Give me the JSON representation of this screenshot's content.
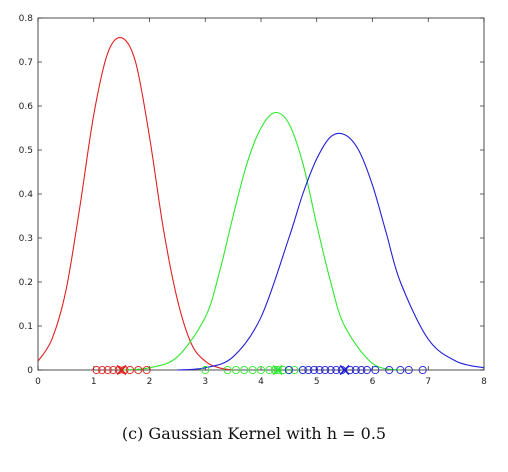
{
  "caption": "(c) Gaussian Kernel with h = 0.5",
  "chart_data": {
    "type": "line",
    "title": "",
    "xlabel": "",
    "ylabel": "",
    "xlim": [
      0,
      8
    ],
    "ylim": [
      0,
      0.8
    ],
    "xticks": [
      "0",
      "1",
      "2",
      "3",
      "4",
      "5",
      "6",
      "7",
      "8"
    ],
    "yticks": [
      "0",
      "0.1",
      "0.2",
      "0.3",
      "0.4",
      "0.5",
      "0.6",
      "0.7",
      "0.8"
    ],
    "grid": false,
    "series": [
      {
        "color": "#e02020",
        "x": [
          0.0,
          0.25,
          0.5,
          0.75,
          1.0,
          1.25,
          1.5,
          1.75,
          2.0,
          2.25,
          2.5,
          2.75,
          3.0,
          3.25,
          3.5
        ],
        "values": [
          0.02,
          0.07,
          0.18,
          0.37,
          0.58,
          0.72,
          0.755,
          0.7,
          0.53,
          0.32,
          0.16,
          0.06,
          0.02,
          0.005,
          0.0
        ],
        "markers_x": [
          1.05,
          1.15,
          1.25,
          1.35,
          1.45,
          1.55,
          1.65,
          1.8,
          1.95
        ],
        "center_x": 1.5
      },
      {
        "color": "#2ee82e",
        "x": [
          1.5,
          2.0,
          2.5,
          3.0,
          3.25,
          3.5,
          3.75,
          4.0,
          4.25,
          4.5,
          4.75,
          5.0,
          5.25,
          5.5,
          6.0,
          6.5
        ],
        "values": [
          0.0,
          0.005,
          0.03,
          0.12,
          0.22,
          0.35,
          0.47,
          0.55,
          0.585,
          0.56,
          0.47,
          0.33,
          0.2,
          0.1,
          0.015,
          0.0
        ],
        "markers_x": [
          3.0,
          3.4,
          3.55,
          3.7,
          3.85,
          4.0,
          4.15,
          4.25,
          4.3,
          4.4,
          4.5,
          4.6,
          4.75
        ],
        "center_x": 4.3
      },
      {
        "color": "#2020d8",
        "x": [
          2.5,
          3.0,
          3.5,
          4.0,
          4.5,
          4.75,
          5.0,
          5.25,
          5.5,
          5.75,
          6.0,
          6.25,
          6.5,
          7.0,
          7.5,
          8.0
        ],
        "values": [
          0.0,
          0.005,
          0.03,
          0.12,
          0.3,
          0.4,
          0.48,
          0.53,
          0.535,
          0.5,
          0.42,
          0.31,
          0.2,
          0.07,
          0.02,
          0.005
        ],
        "markers_x": [
          4.5,
          4.75,
          4.85,
          4.95,
          5.05,
          5.15,
          5.25,
          5.35,
          5.45,
          5.6,
          5.7,
          5.8,
          5.9,
          6.05,
          6.3,
          6.5,
          6.65,
          6.9
        ],
        "center_x": 5.5
      }
    ]
  }
}
